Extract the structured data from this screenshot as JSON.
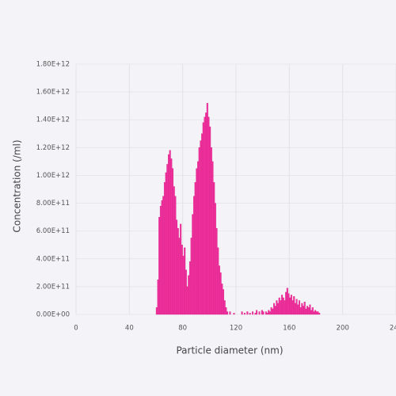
{
  "chart_data": {
    "type": "histogram",
    "xlabel": "Particle diameter (nm)",
    "ylabel": "Concentration (/ml)",
    "color": "#f0309c",
    "grid": true,
    "xlim": [
      0,
      240
    ],
    "xticks": [
      0,
      40,
      80,
      120,
      160,
      200,
      240
    ],
    "ylim": [
      0,
      1800000000000.0
    ],
    "yticks": [
      {
        "value": 0,
        "label": "0.00E+00"
      },
      {
        "value": 200000000000.0,
        "label": "2.00E+11"
      },
      {
        "value": 400000000000.0,
        "label": "4.00E+11"
      },
      {
        "value": 600000000000.0,
        "label": "6.00E+11"
      },
      {
        "value": 800000000000.0,
        "label": "8.00E+11"
      },
      {
        "value": 1000000000000.0,
        "label": "1.00E+12"
      },
      {
        "value": 1200000000000.0,
        "label": "1.20E+12"
      },
      {
        "value": 1400000000000.0,
        "label": "1.40E+12"
      },
      {
        "value": 1600000000000.0,
        "label": "1.60E+12"
      },
      {
        "value": 1800000000000.0,
        "label": "1.80E+12"
      }
    ],
    "bins": [
      60,
      61,
      62,
      63,
      64,
      65,
      66,
      67,
      68,
      69,
      70,
      71,
      72,
      73,
      74,
      75,
      76,
      77,
      78,
      79,
      80,
      81,
      82,
      83,
      84,
      85,
      86,
      87,
      88,
      89,
      90,
      91,
      92,
      93,
      94,
      95,
      96,
      97,
      98,
      99,
      100,
      101,
      102,
      103,
      104,
      105,
      106,
      107,
      108,
      109,
      110,
      111,
      112,
      113,
      114,
      115,
      116,
      117,
      118,
      119,
      120,
      121,
      122,
      123,
      124,
      125,
      126,
      127,
      128,
      129,
      130,
      131,
      132,
      133,
      134,
      135,
      136,
      137,
      138,
      139,
      140,
      141,
      142,
      143,
      144,
      145,
      146,
      147,
      148,
      149,
      150,
      151,
      152,
      153,
      154,
      155,
      156,
      157,
      158,
      159,
      160,
      161,
      162,
      163,
      164,
      165,
      166,
      167,
      168,
      169,
      170,
      171,
      172,
      173,
      174,
      175,
      176,
      177,
      178,
      179,
      180,
      181,
      182,
      183,
      184
    ],
    "counts": [
      50000000000.0,
      250000000000.0,
      700000000000.0,
      780000000000.0,
      820000000000.0,
      850000000000.0,
      950000000000.0,
      1020000000000.0,
      1080000000000.0,
      1150000000000.0,
      1180000000000.0,
      1120000000000.0,
      1050000000000.0,
      920000000000.0,
      850000000000.0,
      680000000000.0,
      620000000000.0,
      550000000000.0,
      650000000000.0,
      500000000000.0,
      420000000000.0,
      480000000000.0,
      320000000000.0,
      200000000000.0,
      280000000000.0,
      380000000000.0,
      550000000000.0,
      720000000000.0,
      850000000000.0,
      950000000000.0,
      1050000000000.0,
      1100000000000.0,
      1200000000000.0,
      1250000000000.0,
      1300000000000.0,
      1380000000000.0,
      1420000000000.0,
      1450000000000.0,
      1520000000000.0,
      1420000000000.0,
      1350000000000.0,
      1200000000000.0,
      1100000000000.0,
      950000000000.0,
      800000000000.0,
      620000000000.0,
      480000000000.0,
      350000000000.0,
      300000000000.0,
      220000000000.0,
      180000000000.0,
      100000000000.0,
      50000000000.0,
      20000000000.0,
      0,
      20000000000.0,
      0,
      0,
      10000000000.0,
      0,
      0,
      0,
      0,
      0,
      20000000000.0,
      0,
      10000000000.0,
      0,
      20000000000.0,
      0,
      10000000000.0,
      0,
      20000000000.0,
      0,
      10000000000.0,
      30000000000.0,
      0,
      20000000000.0,
      0,
      30000000000.0,
      20000000000.0,
      0,
      20000000000.0,
      10000000000.0,
      30000000000.0,
      20000000000.0,
      50000000000.0,
      40000000000.0,
      80000000000.0,
      60000000000.0,
      100000000000.0,
      80000000000.0,
      120000000000.0,
      100000000000.0,
      140000000000.0,
      120000000000.0,
      100000000000.0,
      160000000000.0,
      190000000000.0,
      150000000000.0,
      120000000000.0,
      140000000000.0,
      100000000000.0,
      130000000000.0,
      80000000000.0,
      110000000000.0,
      70000000000.0,
      100000000000.0,
      50000000000.0,
      80000000000.0,
      60000000000.0,
      90000000000.0,
      40000000000.0,
      60000000000.0,
      50000000000.0,
      70000000000.0,
      30000000000.0,
      50000000000.0,
      20000000000.0,
      30000000000.0,
      20000000000.0,
      20000000000.0,
      10000000000.0,
      0
    ]
  }
}
